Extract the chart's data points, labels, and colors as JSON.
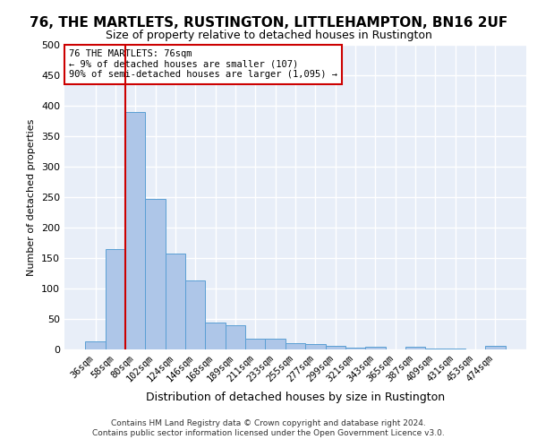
{
  "title": "76, THE MARTLETS, RUSTINGTON, LITTLEHAMPTON, BN16 2UF",
  "subtitle": "Size of property relative to detached houses in Rustington",
  "xlabel": "Distribution of detached houses by size in Rustington",
  "ylabel": "Number of detached properties",
  "categories": [
    "36sqm",
    "58sqm",
    "80sqm",
    "102sqm",
    "124sqm",
    "146sqm",
    "168sqm",
    "189sqm",
    "211sqm",
    "233sqm",
    "255sqm",
    "277sqm",
    "299sqm",
    "321sqm",
    "343sqm",
    "365sqm",
    "387sqm",
    "409sqm",
    "431sqm",
    "453sqm",
    "474sqm"
  ],
  "values": [
    13,
    165,
    390,
    247,
    157,
    113,
    44,
    39,
    18,
    17,
    10,
    9,
    6,
    3,
    4,
    0,
    5,
    1,
    1,
    0,
    6
  ],
  "bar_color": "#aec6e8",
  "bar_edge_color": "#5a9fd4",
  "background_color": "#e8eef8",
  "grid_color": "#ffffff",
  "vline_color": "#cc0000",
  "annotation_text": "76 THE MARTLETS: 76sqm\n← 9% of detached houses are smaller (107)\n90% of semi-detached houses are larger (1,095) →",
  "annotation_box_color": "#ffffff",
  "annotation_box_edge": "#cc0000",
  "footer_line1": "Contains HM Land Registry data © Crown copyright and database right 2024.",
  "footer_line2": "Contains public sector information licensed under the Open Government Licence v3.0.",
  "ylim": [
    0,
    500
  ],
  "yticks": [
    0,
    50,
    100,
    150,
    200,
    250,
    300,
    350,
    400,
    450,
    500
  ],
  "title_fontsize": 11,
  "subtitle_fontsize": 9,
  "ylabel_fontsize": 8,
  "xlabel_fontsize": 9,
  "tick_fontsize": 7.5,
  "annotation_fontsize": 7.5,
  "footer_fontsize": 6.5
}
